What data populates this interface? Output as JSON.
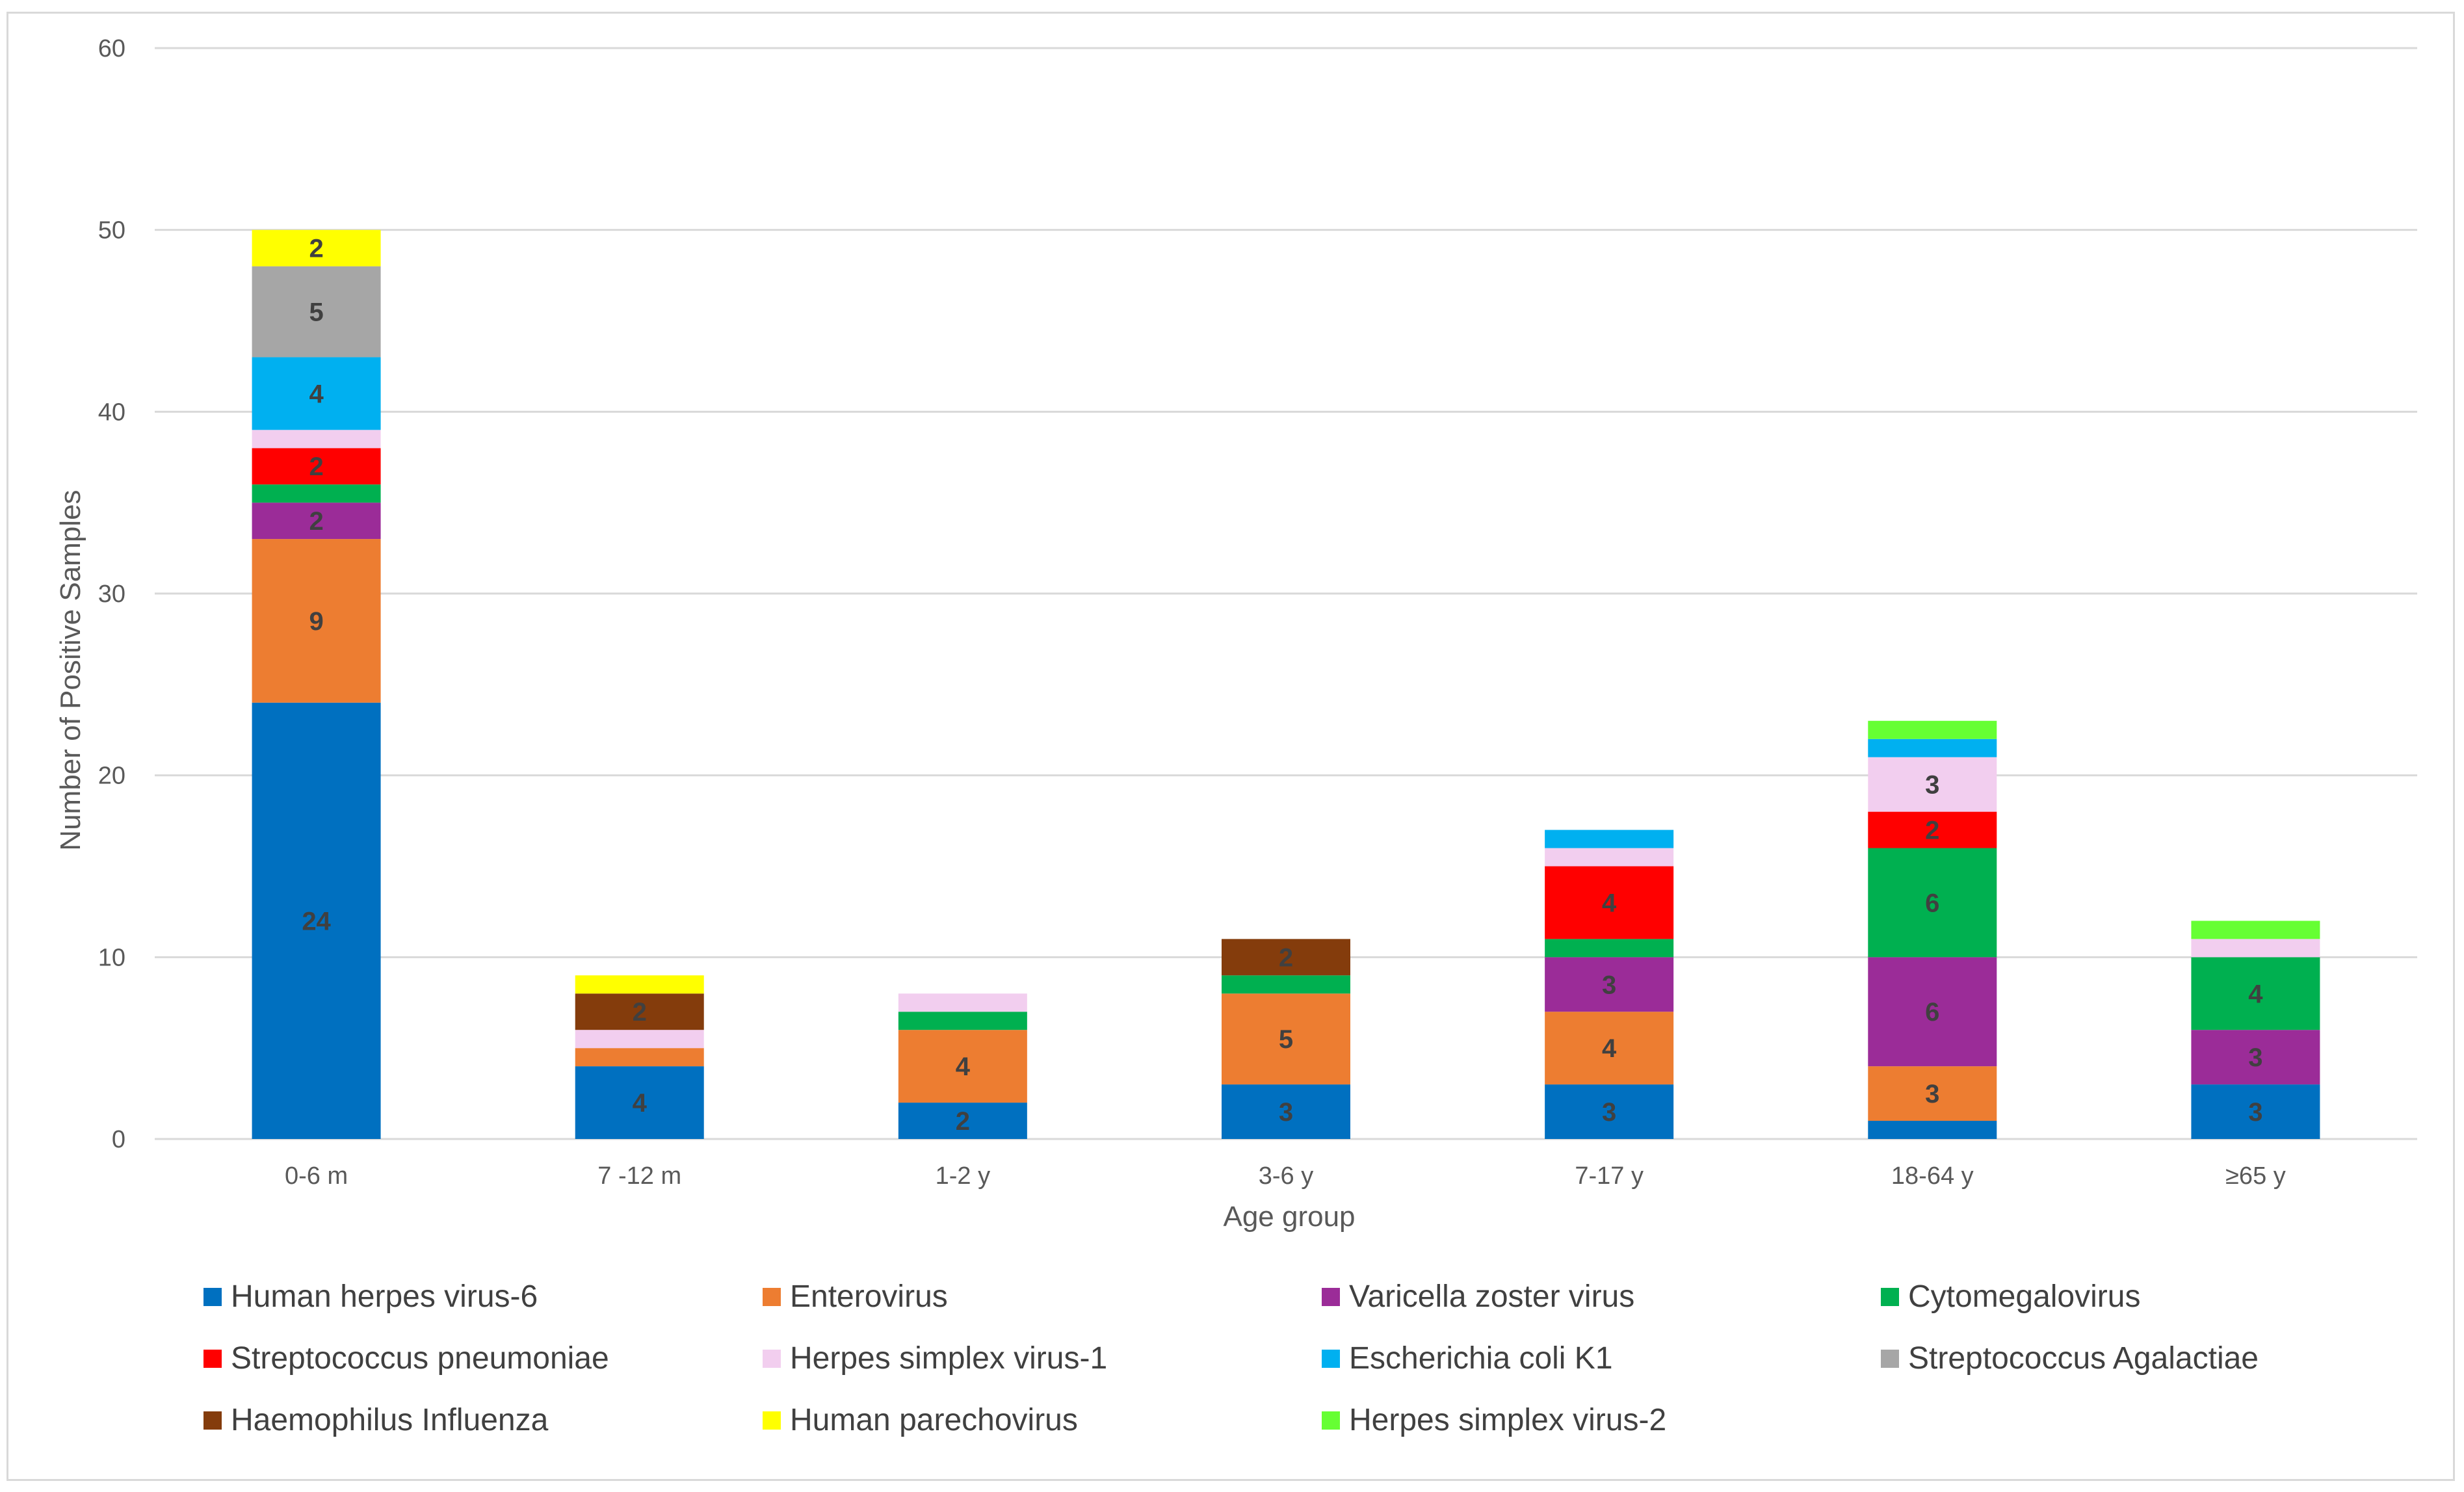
{
  "chart_data": {
    "type": "bar",
    "stacked": true,
    "xlabel": "Age group",
    "ylabel": "Number of Positive Samples",
    "ylim": [
      0,
      60
    ],
    "yticks": [
      0,
      10,
      20,
      30,
      40,
      50,
      60
    ],
    "grid": true,
    "legend_position": "bottom",
    "categories": [
      "0-6 m",
      "7 -12 m",
      "1-2 y",
      "3-6 y",
      "7-17 y",
      "18-64 y",
      "≥65 y"
    ],
    "series": [
      {
        "name": "Human herpes virus-6",
        "color": "#0070C0",
        "values": [
          24,
          4,
          2,
          3,
          3,
          1,
          3
        ]
      },
      {
        "name": "Enterovirus",
        "color": "#ED7D31",
        "values": [
          9,
          1,
          4,
          5,
          4,
          3,
          0
        ]
      },
      {
        "name": "Varicella zoster virus",
        "color": "#9B2C98",
        "values": [
          2,
          0,
          0,
          0,
          3,
          6,
          3
        ]
      },
      {
        "name": "Cytomegalovirus",
        "color": "#00B050",
        "values": [
          1,
          0,
          1,
          1,
          1,
          6,
          4
        ]
      },
      {
        "name": "Streptococcus pneumoniae",
        "color": "#FF0000",
        "values": [
          2,
          0,
          0,
          0,
          4,
          2,
          0
        ]
      },
      {
        "name": "Herpes simplex virus-1",
        "color": "#F2CEEF",
        "values": [
          1,
          1,
          1,
          0,
          1,
          3,
          1
        ]
      },
      {
        "name": "Escherichia coli K1",
        "color": "#00B0F0",
        "values": [
          4,
          0,
          0,
          0,
          1,
          1,
          0
        ]
      },
      {
        "name": "Streptococcus Agalactiae",
        "color": "#A6A6A6",
        "values": [
          5,
          0,
          0,
          0,
          0,
          0,
          0
        ]
      },
      {
        "name": "Haemophilus Influenza",
        "color": "#843C0C",
        "values": [
          0,
          2,
          0,
          2,
          0,
          0,
          0
        ]
      },
      {
        "name": "Human parechovirus",
        "color": "#FFFF00",
        "values": [
          2,
          1,
          0,
          0,
          0,
          0,
          0
        ]
      },
      {
        "name": "Herpes simplex virus-2",
        "color": "#66FF33",
        "values": [
          0,
          0,
          0,
          0,
          0,
          1,
          1
        ]
      }
    ]
  }
}
